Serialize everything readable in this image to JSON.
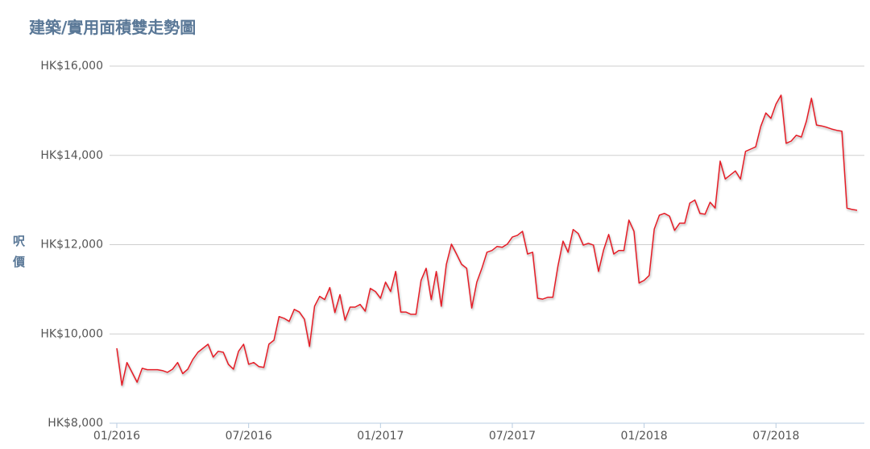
{
  "chart_data": {
    "type": "line",
    "title": "建築/實用面積雙走勢圖",
    "y_label": "呎價",
    "color": "#e41e26",
    "grid": true,
    "ylim": [
      8000,
      16000
    ],
    "yticks": [
      {
        "value": 8000,
        "label": "HK$8,000"
      },
      {
        "value": 10000,
        "label": "HK$10,000"
      },
      {
        "value": 12000,
        "label": "HK$12,000"
      },
      {
        "value": 14000,
        "label": "HK$14,000"
      },
      {
        "value": 16000,
        "label": "HK$16,000"
      }
    ],
    "categories": [
      "01/2016",
      null,
      null,
      null,
      null,
      null,
      null,
      null,
      null,
      null,
      null,
      null,
      null,
      null,
      null,
      null,
      null,
      null,
      null,
      null,
      null,
      null,
      null,
      null,
      null,
      null,
      "07/2016",
      null,
      null,
      null,
      null,
      null,
      null,
      null,
      null,
      null,
      null,
      null,
      null,
      null,
      null,
      null,
      null,
      null,
      null,
      null,
      null,
      null,
      null,
      null,
      null,
      null,
      "01/2017",
      null,
      null,
      null,
      null,
      null,
      null,
      null,
      null,
      null,
      null,
      null,
      null,
      null,
      null,
      null,
      null,
      null,
      null,
      null,
      null,
      null,
      null,
      null,
      null,
      null,
      "07/2017",
      null,
      null,
      null,
      null,
      null,
      null,
      null,
      null,
      null,
      null,
      null,
      null,
      null,
      null,
      null,
      null,
      null,
      null,
      null,
      null,
      null,
      null,
      null,
      null,
      null,
      "01/2018",
      null,
      null,
      null,
      null,
      null,
      null,
      null,
      null,
      null,
      null,
      null,
      null,
      null,
      null,
      null,
      null,
      null,
      null,
      null,
      null,
      null,
      null,
      null,
      null,
      null,
      "07/2018",
      null,
      null,
      null,
      null,
      null,
      null,
      null,
      null,
      null,
      null,
      null,
      null,
      null,
      null,
      null,
      null
    ],
    "values": [
      9680,
      8850,
      9360,
      9140,
      8920,
      9230,
      9200,
      9200,
      9200,
      9180,
      9140,
      9210,
      9360,
      9110,
      9210,
      9430,
      9590,
      9680,
      9770,
      9480,
      9610,
      9590,
      9320,
      9210,
      9610,
      9770,
      9320,
      9360,
      9270,
      9250,
      9770,
      9860,
      10390,
      10350,
      10280,
      10550,
      10490,
      10330,
      9720,
      10620,
      10840,
      10770,
      11040,
      10480,
      10880,
      10310,
      10600,
      10600,
      10660,
      10510,
      11020,
      10950,
      10800,
      11160,
      10950,
      11400,
      10490,
      10490,
      10440,
      10440,
      11200,
      11470,
      10770,
      11400,
      10620,
      11560,
      12010,
      11790,
      11560,
      11470,
      10580,
      11160,
      11470,
      11830,
      11870,
      11960,
      11940,
      12010,
      12170,
      12210,
      12300,
      11790,
      11830,
      10800,
      10780,
      10820,
      10820,
      11520,
      12080,
      11830,
      12340,
      12250,
      11990,
      12030,
      11990,
      11400,
      11880,
      12230,
      11790,
      11870,
      11870,
      12550,
      12300,
      11140,
      11200,
      11310,
      12350,
      12660,
      12700,
      12640,
      12320,
      12480,
      12480,
      12930,
      13000,
      12700,
      12680,
      12950,
      12820,
      13870,
      13470,
      13560,
      13650,
      13470,
      14090,
      14140,
      14190,
      14650,
      14950,
      14830,
      15150,
      15350,
      14270,
      14320,
      14450,
      14410,
      14770,
      15280,
      14680,
      14660,
      14630,
      14590,
      14560,
      14540,
      12820,
      12790,
      12770
    ]
  }
}
